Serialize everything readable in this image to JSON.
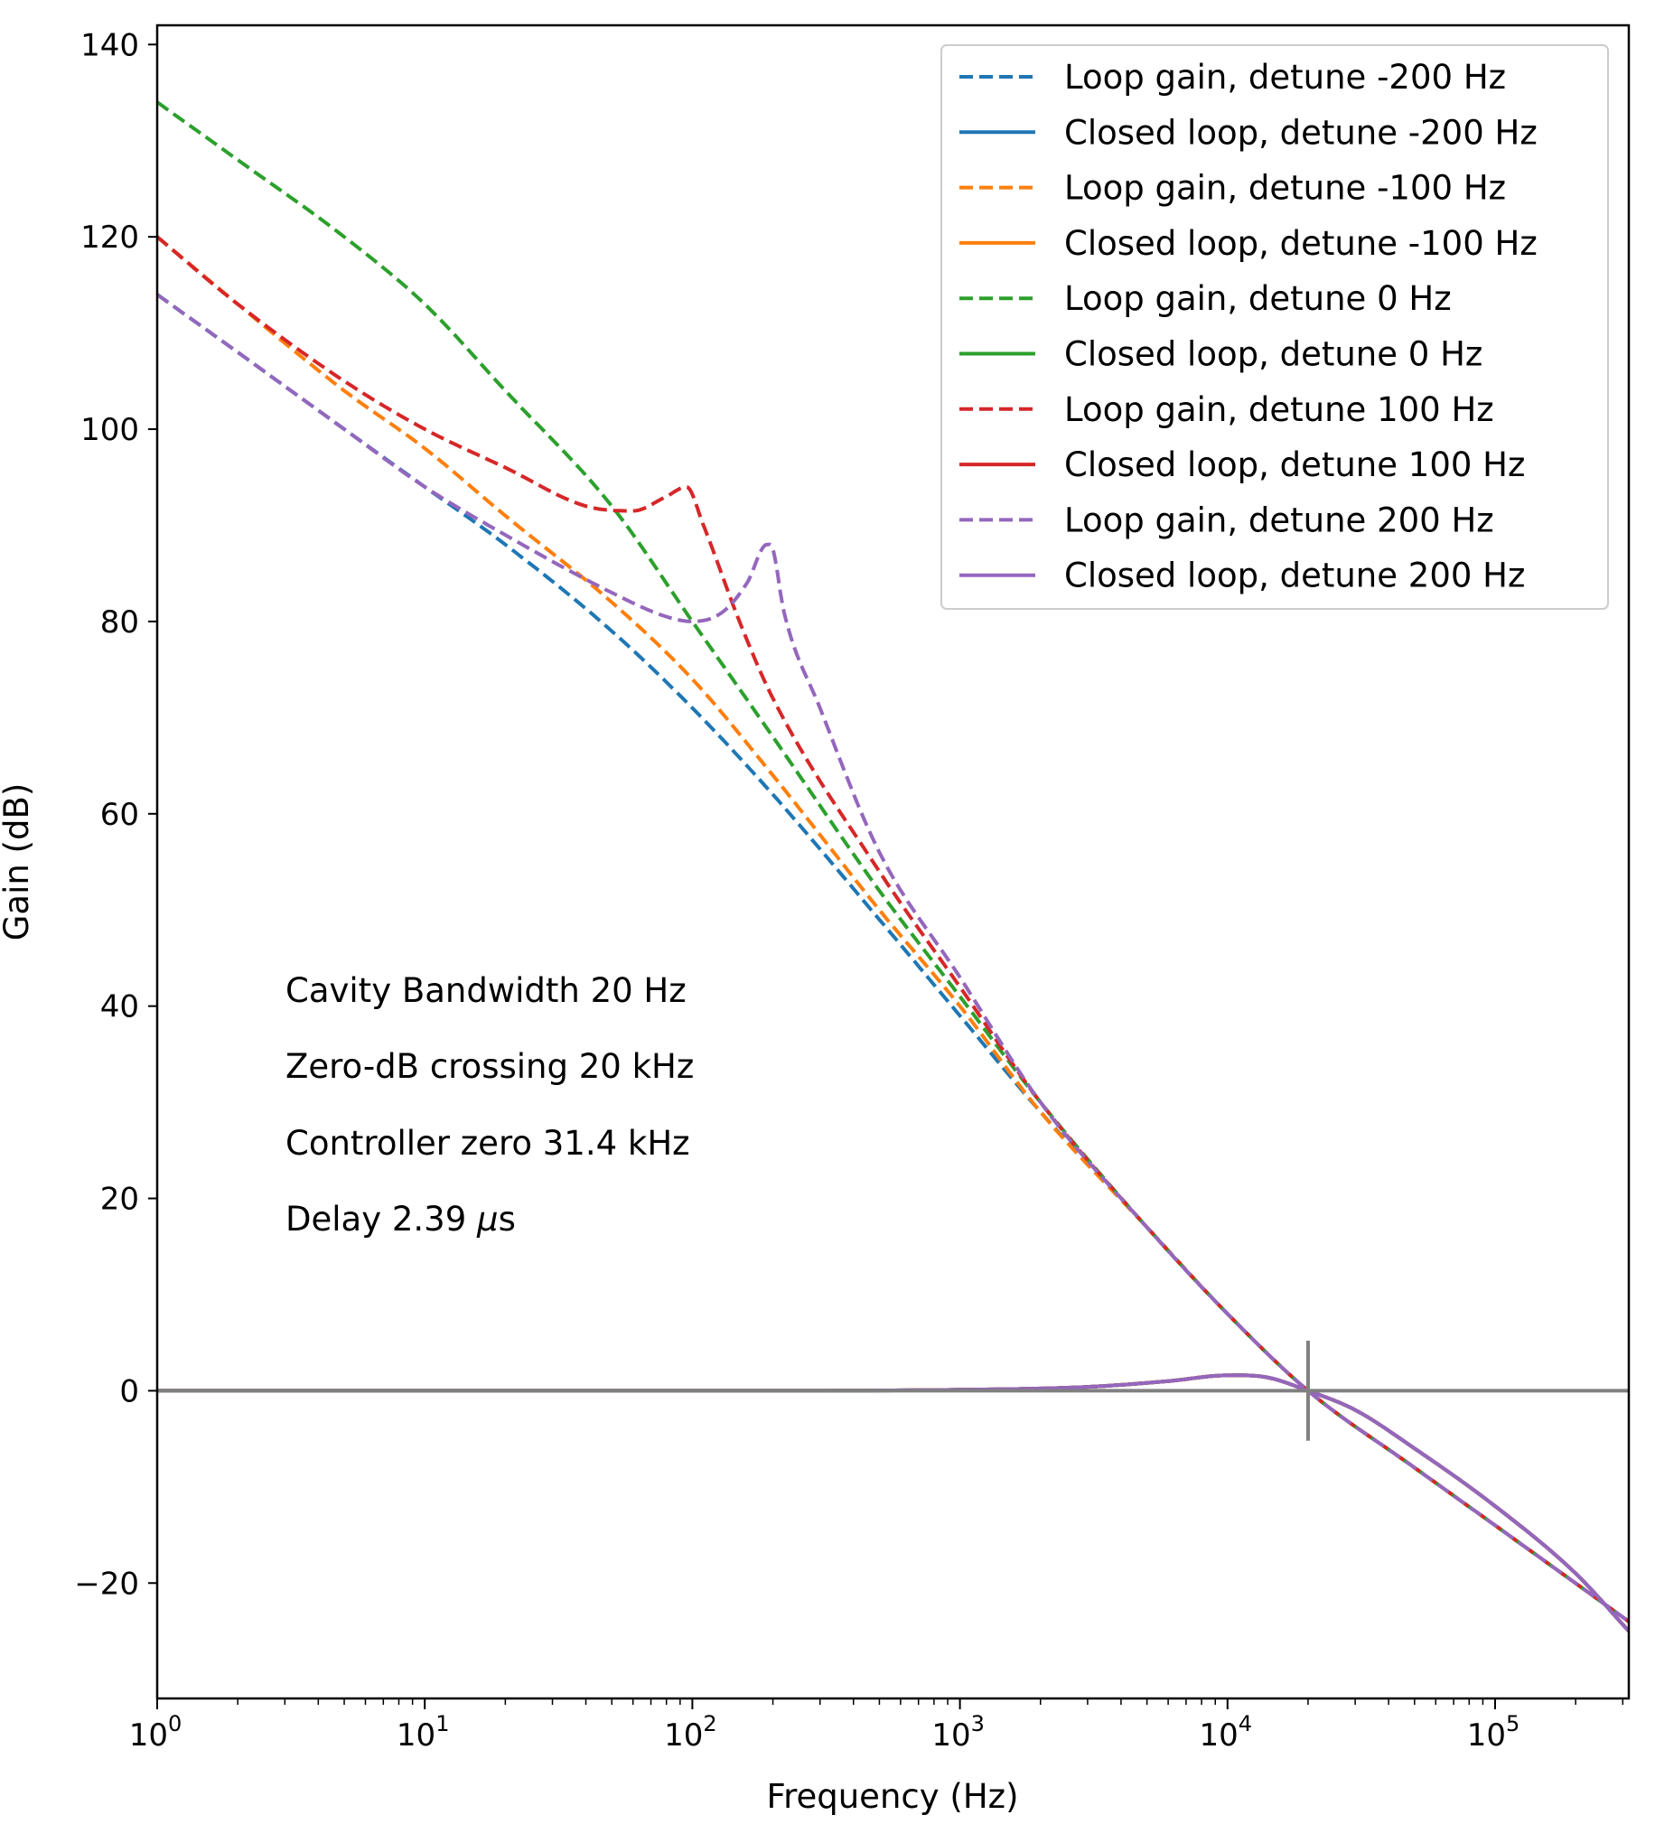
{
  "chart_data": {
    "type": "line",
    "xscale": "log",
    "xlabel": "Frequency (Hz)",
    "ylabel": "Gain (dB)",
    "xlim": [
      1,
      316000
    ],
    "ylim": [
      -32,
      142
    ],
    "xticks": [
      {
        "base": "10",
        "exp": "0",
        "value": 1
      },
      {
        "base": "10",
        "exp": "1",
        "value": 10
      },
      {
        "base": "10",
        "exp": "2",
        "value": 100
      },
      {
        "base": "10",
        "exp": "3",
        "value": 1000
      },
      {
        "base": "10",
        "exp": "4",
        "value": 10000
      },
      {
        "base": "10",
        "exp": "5",
        "value": 100000
      }
    ],
    "yticks": [
      {
        "label": "140",
        "value": 140
      },
      {
        "label": "120",
        "value": 120
      },
      {
        "label": "100",
        "value": 100
      },
      {
        "label": "80",
        "value": 80
      },
      {
        "label": "60",
        "value": 60
      },
      {
        "label": "40",
        "value": 40
      },
      {
        "label": "20",
        "value": 20
      },
      {
        "label": "0",
        "value": 0
      },
      {
        "label": "−20",
        "value": -20
      }
    ],
    "annotations": [
      {
        "text": "Cavity Bandwidth 20 Hz"
      },
      {
        "text": "Zero-dB crossing 20 kHz"
      },
      {
        "text": "Controller zero 31.4 kHz"
      },
      {
        "text": "Delay 2.39 ",
        "italic": "μ",
        "suffix": "s"
      }
    ],
    "reference_line": {
      "y": 0,
      "color": "#808080"
    },
    "crossing_marker": {
      "x": 20000,
      "y": 0,
      "y_extent": [
        -5.2,
        5.2
      ],
      "color": "#808080"
    },
    "legend_position": "upper right",
    "series": [
      {
        "name": "Loop gain, detune -200 Hz",
        "color": "#1f77b4",
        "dash": true,
        "x": [
          1,
          2,
          5,
          10,
          20,
          50,
          100,
          200,
          500,
          1000,
          2000,
          5000,
          10000,
          20000,
          50000,
          100000,
          316000
        ],
        "y": [
          114,
          108,
          100,
          94,
          88,
          79,
          71,
          62,
          49,
          39,
          29,
          17,
          8,
          0,
          -8,
          -14,
          -24
        ]
      },
      {
        "name": "Closed loop, detune -200 Hz",
        "color": "#1f77b4",
        "dash": false,
        "x": [
          1,
          10,
          100,
          1000,
          3000,
          6000,
          10000,
          14000,
          20000,
          30000,
          50000,
          100000,
          200000,
          316000
        ],
        "y": [
          0,
          0,
          0,
          0.1,
          0.4,
          1.0,
          1.6,
          1.4,
          0,
          -2,
          -6,
          -12,
          -19,
          -25
        ]
      },
      {
        "name": "Loop gain, detune -100 Hz",
        "color": "#ff7f0e",
        "dash": true,
        "x": [
          1,
          2,
          5,
          10,
          20,
          50,
          100,
          200,
          500,
          1000,
          2000,
          5000,
          10000,
          20000,
          50000,
          100000,
          316000
        ],
        "y": [
          120,
          113,
          104,
          98,
          91,
          82,
          74,
          64,
          50,
          40,
          29,
          17,
          8,
          0,
          -8,
          -14,
          -24
        ]
      },
      {
        "name": "Closed loop, detune -100 Hz",
        "color": "#ff7f0e",
        "dash": false,
        "x": [
          1,
          10,
          100,
          1000,
          3000,
          6000,
          10000,
          14000,
          20000,
          30000,
          50000,
          100000,
          200000,
          316000
        ],
        "y": [
          0,
          0,
          0,
          0.1,
          0.4,
          1.0,
          1.6,
          1.4,
          0,
          -2,
          -6,
          -12,
          -19,
          -25
        ]
      },
      {
        "name": "Loop gain, detune 0 Hz",
        "color": "#2ca02c",
        "dash": true,
        "x": [
          1,
          2,
          5,
          10,
          20,
          50,
          100,
          200,
          500,
          1000,
          2000,
          5000,
          10000,
          20000,
          50000,
          100000,
          316000
        ],
        "y": [
          134,
          128,
          120,
          113,
          104,
          92,
          80,
          68,
          52,
          41,
          30,
          17,
          8,
          0,
          -8,
          -14,
          -24
        ]
      },
      {
        "name": "Closed loop, detune 0 Hz",
        "color": "#2ca02c",
        "dash": false,
        "x": [
          1,
          10,
          100,
          1000,
          3000,
          6000,
          10000,
          14000,
          20000,
          30000,
          50000,
          100000,
          200000,
          316000
        ],
        "y": [
          0,
          0,
          0,
          0.1,
          0.4,
          1.0,
          1.6,
          1.4,
          0,
          -2,
          -6,
          -12,
          -19,
          -25
        ]
      },
      {
        "name": "Loop gain, detune 100 Hz",
        "color": "#d62728",
        "dash": true,
        "x": [
          1,
          2,
          5,
          10,
          20,
          40,
          60,
          80,
          95,
          110,
          150,
          200,
          500,
          1000,
          2000,
          5000,
          10000,
          20000,
          50000,
          100000,
          316000
        ],
        "y": [
          120,
          113,
          105,
          100,
          96,
          92,
          91.5,
          93,
          94,
          90,
          80,
          72,
          54,
          42,
          30,
          17,
          8,
          0,
          -8,
          -14,
          -24
        ]
      },
      {
        "name": "Closed loop, detune 100 Hz",
        "color": "#d62728",
        "dash": false,
        "x": [
          1,
          10,
          100,
          1000,
          3000,
          6000,
          10000,
          14000,
          20000,
          30000,
          50000,
          100000,
          200000,
          316000
        ],
        "y": [
          0,
          0,
          0,
          0.1,
          0.4,
          1.0,
          1.6,
          1.4,
          0,
          -2,
          -6,
          -12,
          -19,
          -25
        ]
      },
      {
        "name": "Loop gain, detune 200 Hz",
        "color": "#9467bd",
        "dash": true,
        "x": [
          1,
          2,
          5,
          10,
          20,
          50,
          80,
          100,
          130,
          160,
          190,
          200,
          220,
          300,
          500,
          1000,
          2000,
          5000,
          10000,
          20000,
          50000,
          100000,
          316000
        ],
        "y": [
          114,
          108,
          100,
          94,
          89,
          83,
          80.5,
          80,
          81,
          84,
          88,
          87.5,
          81,
          71,
          56,
          43,
          30,
          17,
          8,
          0,
          -8,
          -14,
          -24
        ]
      },
      {
        "name": "Closed loop, detune 200 Hz",
        "color": "#9467bd",
        "dash": false,
        "x": [
          1,
          10,
          100,
          1000,
          3000,
          6000,
          10000,
          14000,
          20000,
          30000,
          50000,
          100000,
          200000,
          316000
        ],
        "y": [
          0,
          0,
          0,
          0.1,
          0.4,
          1.0,
          1.6,
          1.4,
          0,
          -2,
          -6,
          -12,
          -19,
          -25
        ]
      }
    ]
  }
}
